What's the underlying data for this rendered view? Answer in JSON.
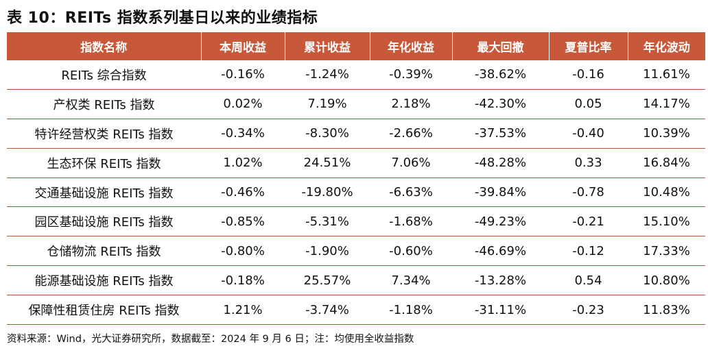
{
  "title": "表 10：REITs 指数系列基日以来的业绩指标",
  "table": {
    "headers": [
      "指数名称",
      "本周收益",
      "累计收益",
      "年化收益",
      "最大回撤",
      "夏普比率",
      "年化波动"
    ],
    "rows": [
      [
        "REITs 综合指数",
        "-0.16%",
        "-1.24%",
        "-0.39%",
        "-38.62%",
        "-0.16",
        "11.61%"
      ],
      [
        "产权类 REITs 指数",
        "0.02%",
        "7.19%",
        "2.18%",
        "-42.30%",
        "0.05",
        "14.17%"
      ],
      [
        "特许经营权类 REITs 指数",
        "-0.34%",
        "-8.30%",
        "-2.66%",
        "-37.53%",
        "-0.40",
        "10.39%"
      ],
      [
        "生态环保 REITs 指数",
        "1.02%",
        "24.51%",
        "7.06%",
        "-48.28%",
        "0.33",
        "16.84%"
      ],
      [
        "交通基础设施 REITs 指数",
        "-0.46%",
        "-19.80%",
        "-6.63%",
        "-39.84%",
        "-0.78",
        "10.48%"
      ],
      [
        "园区基础设施 REITs 指数",
        "-0.85%",
        "-5.31%",
        "-1.68%",
        "-49.23%",
        "-0.21",
        "15.10%"
      ],
      [
        "仓储物流 REITs 指数",
        "-0.80%",
        "-1.90%",
        "-0.60%",
        "-46.69%",
        "-0.12",
        "17.33%"
      ],
      [
        "能源基础设施 REITs 指数",
        "-0.18%",
        "25.57%",
        "7.34%",
        "-13.28%",
        "0.54",
        "10.80%"
      ],
      [
        "保障性租赁住房 REITs 指数",
        "1.21%",
        "-3.74%",
        "-1.18%",
        "-31.11%",
        "-0.23",
        "11.83%"
      ]
    ]
  },
  "footnote": "资料来源：Wind，光大证券研究所，数据截至：2024 年 9 月 6 日；注：均使用全收益指数",
  "colors": {
    "header_bg": "#c8583a",
    "header_text": "#ffffff",
    "row_border": "#b8553c"
  }
}
